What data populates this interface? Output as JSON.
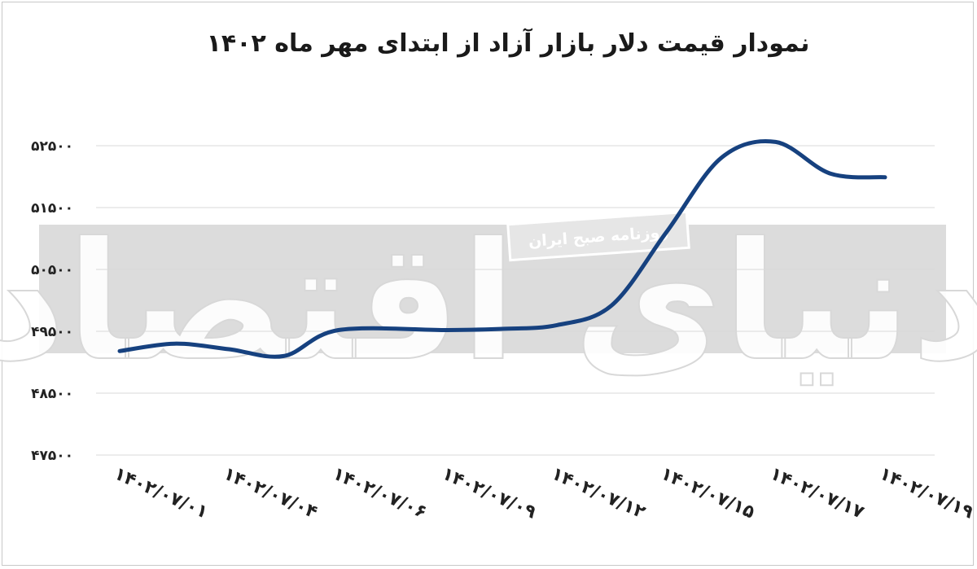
{
  "chart_data": {
    "type": "line",
    "title": "نمودار قیمت دلار بازار آزاد از ابتدای مهر ماه ۱۴۰۲",
    "x": [
      "۱۴۰۲/۰۷/۰۱",
      "۱۴۰۲/۰۷/۰۴",
      "۱۴۰۲/۰۷/۰۶",
      "۱۴۰۲/۰۷/۰۹",
      "۱۴۰۲/۰۷/۱۲",
      "۱۴۰۲/۰۷/۱۵",
      "۱۴۰۲/۰۷/۱۷",
      "۱۴۰۲/۰۷/۱۹"
    ],
    "y_ticks": [
      47500,
      48500,
      49500,
      50500,
      51500,
      52500
    ],
    "y_tick_labels": [
      "۴۷۵۰۰",
      "۴۸۵۰۰",
      "۴۹۵۰۰",
      "۵۰۵۰۰",
      "۵۱۵۰۰",
      "۵۲۵۰۰"
    ],
    "ylim": [
      47500,
      52500
    ],
    "grid": "horizontal",
    "series": [
      {
        "color": "#16417f",
        "points": [
          {
            "x": 0.0,
            "y": 49180
          },
          {
            "x": 0.5,
            "y": 49300
          },
          {
            "x": 1.0,
            "y": 49210
          },
          {
            "x": 1.5,
            "y": 49100
          },
          {
            "x": 2.0,
            "y": 49520
          },
          {
            "x": 3.0,
            "y": 49520
          },
          {
            "x": 3.5,
            "y": 49540
          },
          {
            "x": 4.0,
            "y": 49600
          },
          {
            "x": 4.5,
            "y": 49920
          },
          {
            "x": 5.0,
            "y": 51100
          },
          {
            "x": 5.5,
            "y": 52300
          },
          {
            "x": 6.0,
            "y": 52560
          },
          {
            "x": 6.5,
            "y": 52050
          },
          {
            "x": 7.0,
            "y": 51990
          }
        ]
      }
    ]
  },
  "watermark": {
    "main": "دنیای اقتصاد",
    "banner": "روزنامه صبح ایران"
  }
}
